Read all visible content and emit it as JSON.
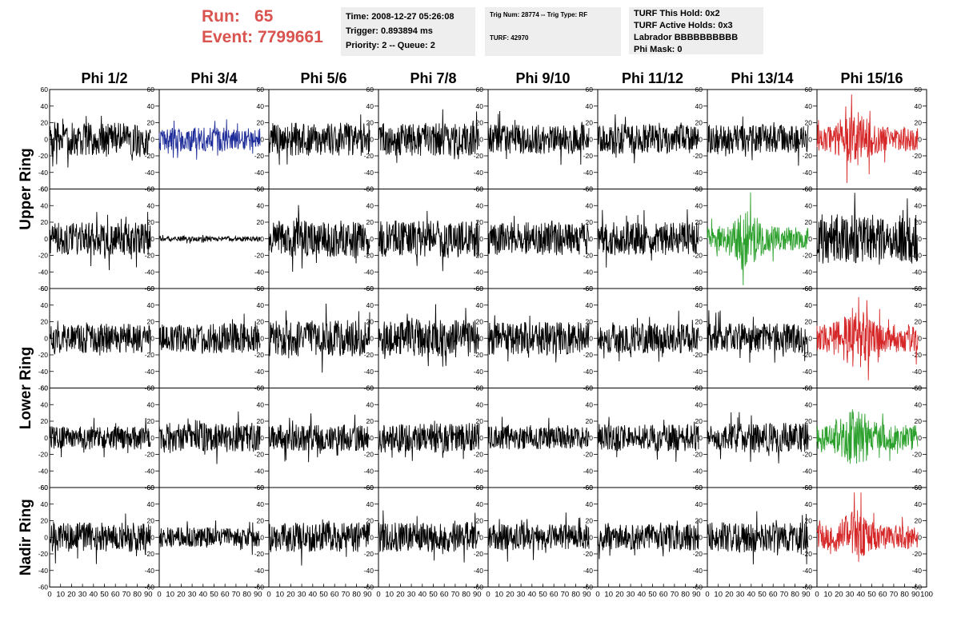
{
  "header": {
    "run_label": "Run:",
    "run_value": "65",
    "event_label": "Event:",
    "event_value": "7799661",
    "time": "Time: 2008-12-27 05:26:08",
    "trigger": "Trigger: 0.893894 ms",
    "priority": "Priority: 2 -- Queue: 2",
    "trig_num": "Trig Num: 28774 -- Trig Type: RF",
    "turf": "TURF: 42970",
    "turf_this_hold": "TURF This Hold: 0x2",
    "turf_active_holds": "TURF Active Holds: 0x3",
    "labrador": "Labrador BBBBBBBBBB",
    "phi_mask": "Phi Mask: 0"
  },
  "colors": {
    "header_red": "#d9534f",
    "info_bg": "#eeeeee",
    "trace_black": "#000000",
    "trace_blue": "#1f2d9a",
    "trace_red": "#d62728",
    "trace_green": "#2ca02c"
  },
  "chart_data": {
    "type": "line",
    "columns": [
      "Phi 1/2",
      "Phi 3/4",
      "Phi 5/6",
      "Phi 7/8",
      "Phi 9/10",
      "Phi 11/12",
      "Phi 13/14",
      "Phi 15/16"
    ],
    "rows": [
      {
        "label": "Upper Ring",
        "rows": 2
      },
      {
        "label": "Lower Ring",
        "rows": 2
      },
      {
        "label": "Nadir Ring",
        "rows": 1
      }
    ],
    "ylim": [
      -60,
      60
    ],
    "xlim": [
      0,
      100
    ],
    "y_ticks": [
      -60,
      -40,
      -20,
      0,
      20,
      40,
      60
    ],
    "x_ticks": [
      0,
      10,
      20,
      30,
      40,
      50,
      60,
      70,
      80,
      90,
      100
    ],
    "panels": [
      [
        {
          "color": "black",
          "amp": 20
        },
        {
          "color": "blue",
          "amp": 14
        },
        {
          "color": "black",
          "amp": 20
        },
        {
          "color": "black",
          "amp": 20
        },
        {
          "color": "black",
          "amp": 18
        },
        {
          "color": "black",
          "amp": 18
        },
        {
          "color": "black",
          "amp": 18
        },
        {
          "color": "red",
          "amp": 24
        }
      ],
      [
        {
          "color": "black",
          "amp": 20
        },
        {
          "color": "black",
          "amp": 3
        },
        {
          "color": "black",
          "amp": 22
        },
        {
          "color": "black",
          "amp": 22
        },
        {
          "color": "black",
          "amp": 20
        },
        {
          "color": "black",
          "amp": 20
        },
        {
          "color": "green",
          "amp": 24
        },
        {
          "color": "black",
          "amp": 30
        }
      ],
      [
        {
          "color": "black",
          "amp": 18
        },
        {
          "color": "black",
          "amp": 18
        },
        {
          "color": "black",
          "amp": 22
        },
        {
          "color": "black",
          "amp": 22
        },
        {
          "color": "black",
          "amp": 20
        },
        {
          "color": "black",
          "amp": 18
        },
        {
          "color": "black",
          "amp": 18
        },
        {
          "color": "red",
          "amp": 28
        }
      ],
      [
        {
          "color": "black",
          "amp": 14
        },
        {
          "color": "black",
          "amp": 18
        },
        {
          "color": "black",
          "amp": 16
        },
        {
          "color": "black",
          "amp": 18
        },
        {
          "color": "black",
          "amp": 14
        },
        {
          "color": "black",
          "amp": 16
        },
        {
          "color": "black",
          "amp": 18
        },
        {
          "color": "green",
          "amp": 26
        }
      ],
      [
        {
          "color": "black",
          "amp": 18
        },
        {
          "color": "black",
          "amp": 12
        },
        {
          "color": "black",
          "amp": 18
        },
        {
          "color": "black",
          "amp": 18
        },
        {
          "color": "black",
          "amp": 16
        },
        {
          "color": "black",
          "amp": 16
        },
        {
          "color": "black",
          "amp": 18
        },
        {
          "color": "red",
          "amp": 24
        }
      ]
    ]
  }
}
